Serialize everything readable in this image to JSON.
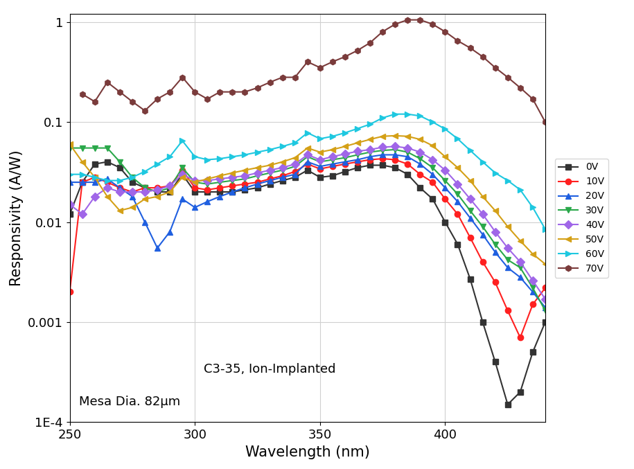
{
  "chart_data": {
    "type": "line",
    "x_label": "Wavelength (nm)",
    "y_label": "Responsivity (A/W)",
    "annotations": [
      "C3-35, Ion-Implanted",
      "Mesa Dia. 82μm"
    ],
    "log": "y",
    "grid": true,
    "legend": "right",
    "xlim": [
      250,
      440
    ],
    "xticks": [
      250,
      300,
      350,
      400
    ],
    "ylim": [
      0.0001,
      1.2
    ],
    "yticks": [
      {
        "value": 0.0001,
        "label": "1E-4"
      },
      0.001,
      0.01,
      0.1,
      1
    ],
    "x": [
      250,
      255,
      260,
      265,
      270,
      275,
      280,
      285,
      290,
      295,
      300,
      305,
      310,
      315,
      320,
      325,
      330,
      335,
      340,
      345,
      350,
      355,
      360,
      365,
      370,
      375,
      380,
      385,
      390,
      395,
      400,
      405,
      410,
      415,
      420,
      425,
      430,
      435,
      440
    ],
    "series": [
      {
        "name": "0V",
        "color": "#333333",
        "marker": "square",
        "line_style": "solid",
        "values": [
          0.012,
          0.025,
          0.038,
          0.04,
          0.035,
          0.025,
          0.022,
          0.02,
          0.02,
          0.03,
          0.02,
          0.02,
          0.02,
          0.02,
          0.021,
          0.022,
          0.024,
          0.026,
          0.028,
          0.033,
          0.028,
          0.029,
          0.032,
          0.035,
          0.037,
          0.037,
          0.035,
          0.03,
          0.022,
          0.017,
          0.01,
          0.006,
          0.0027,
          0.001,
          0.0004,
          0.00015,
          0.0002,
          0.0005,
          0.001
        ]
      },
      {
        "name": "10V",
        "color": "#ff2020",
        "marker": "circle",
        "line_style": "solid",
        "values": [
          0.002,
          0.025,
          0.028,
          0.025,
          0.022,
          0.02,
          0.022,
          0.022,
          0.023,
          0.033,
          0.022,
          0.021,
          0.022,
          0.023,
          0.024,
          0.025,
          0.027,
          0.029,
          0.032,
          0.038,
          0.034,
          0.036,
          0.038,
          0.04,
          0.042,
          0.043,
          0.042,
          0.038,
          0.03,
          0.025,
          0.017,
          0.012,
          0.007,
          0.004,
          0.0025,
          0.0013,
          0.0007,
          0.0015,
          0.0022
        ]
      },
      {
        "name": "20V",
        "color": "#1f5fe0",
        "marker": "triangle_up",
        "line_style": "solid",
        "values": [
          0.025,
          0.025,
          0.025,
          0.027,
          0.022,
          0.018,
          0.01,
          0.0055,
          0.008,
          0.017,
          0.014,
          0.016,
          0.018,
          0.02,
          0.022,
          0.024,
          0.026,
          0.028,
          0.03,
          0.04,
          0.036,
          0.038,
          0.04,
          0.042,
          0.045,
          0.047,
          0.047,
          0.045,
          0.038,
          0.03,
          0.022,
          0.016,
          0.011,
          0.0075,
          0.005,
          0.0035,
          0.0028,
          0.002,
          0.0014
        ]
      },
      {
        "name": "30V",
        "color": "#2aa84a",
        "marker": "triangle_down",
        "line_style": "solid",
        "values": [
          0.055,
          0.055,
          0.055,
          0.055,
          0.04,
          0.028,
          0.022,
          0.02,
          0.022,
          0.035,
          0.025,
          0.024,
          0.025,
          0.026,
          0.027,
          0.029,
          0.031,
          0.033,
          0.036,
          0.045,
          0.04,
          0.042,
          0.044,
          0.047,
          0.05,
          0.052,
          0.053,
          0.05,
          0.043,
          0.035,
          0.026,
          0.019,
          0.013,
          0.009,
          0.006,
          0.0042,
          0.0035,
          0.0022,
          0.0013
        ]
      },
      {
        "name": "40V",
        "color": "#a066e8",
        "marker": "diamond",
        "line_style": "solid",
        "values": [
          0.015,
          0.012,
          0.018,
          0.022,
          0.02,
          0.02,
          0.02,
          0.021,
          0.023,
          0.03,
          0.026,
          0.026,
          0.027,
          0.028,
          0.029,
          0.031,
          0.033,
          0.035,
          0.038,
          0.047,
          0.042,
          0.045,
          0.048,
          0.051,
          0.053,
          0.056,
          0.057,
          0.055,
          0.05,
          0.042,
          0.033,
          0.024,
          0.017,
          0.012,
          0.008,
          0.0055,
          0.004,
          0.0026,
          0.0017
        ]
      },
      {
        "name": "50V",
        "color": "#d4a017",
        "marker": "triangle_left",
        "line_style": "solid",
        "values": [
          0.06,
          0.04,
          0.028,
          0.018,
          0.013,
          0.014,
          0.017,
          0.018,
          0.02,
          0.028,
          0.025,
          0.027,
          0.029,
          0.031,
          0.033,
          0.035,
          0.037,
          0.04,
          0.044,
          0.055,
          0.05,
          0.053,
          0.057,
          0.062,
          0.067,
          0.072,
          0.073,
          0.072,
          0.067,
          0.058,
          0.045,
          0.035,
          0.026,
          0.018,
          0.013,
          0.009,
          0.0065,
          0.0048,
          0.0038
        ]
      },
      {
        "name": "60V",
        "color": "#1ec8e0",
        "marker": "triangle_right",
        "line_style": "solid",
        "values": [
          0.03,
          0.03,
          0.028,
          0.026,
          0.026,
          0.028,
          0.032,
          0.038,
          0.045,
          0.065,
          0.045,
          0.042,
          0.043,
          0.045,
          0.047,
          0.05,
          0.053,
          0.057,
          0.062,
          0.078,
          0.068,
          0.072,
          0.078,
          0.086,
          0.095,
          0.11,
          0.12,
          0.12,
          0.115,
          0.1,
          0.085,
          0.068,
          0.052,
          0.04,
          0.031,
          0.026,
          0.021,
          0.014,
          0.0085
        ]
      },
      {
        "name": "70V",
        "color": "#7a3b3b",
        "marker": "hexagon",
        "line_style": "solid",
        "values": [
          null,
          0.19,
          0.16,
          0.25,
          0.2,
          0.16,
          0.13,
          0.17,
          0.2,
          0.28,
          0.2,
          0.17,
          0.2,
          0.2,
          0.2,
          0.22,
          0.25,
          0.28,
          0.28,
          0.4,
          0.35,
          0.4,
          0.45,
          0.52,
          0.62,
          0.8,
          0.95,
          1.05,
          1.05,
          0.95,
          0.8,
          0.65,
          0.55,
          0.45,
          0.35,
          0.28,
          0.22,
          0.17,
          0.1
        ]
      }
    ]
  }
}
